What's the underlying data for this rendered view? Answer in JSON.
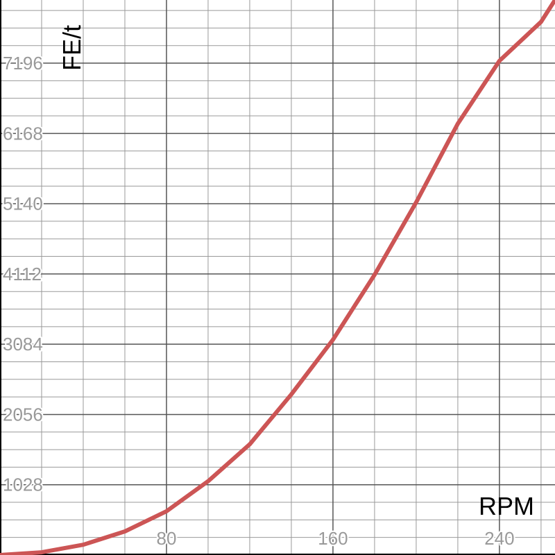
{
  "chart_data": {
    "type": "line",
    "title": "",
    "xlabel": "RPM",
    "ylabel": "FE/t",
    "xlim": [
      0,
      266.7
    ],
    "ylim": [
      0,
      8120
    ],
    "x_ticks": [
      80,
      160,
      240
    ],
    "y_ticks": [
      1028,
      2056,
      3084,
      4112,
      5140,
      6168,
      7196
    ],
    "grid": true,
    "colors": {
      "line": "#cc5555",
      "major_grid": "#555555",
      "minor_grid": "#999999",
      "tick_text": "#999999"
    },
    "series": [
      {
        "x": [
          0,
          20,
          40,
          60,
          80,
          100,
          120,
          140,
          160,
          180,
          200,
          220,
          240,
          260,
          266.7
        ],
        "y": [
          0,
          40,
          150,
          345,
          640,
          1080,
          1620,
          2350,
          3150,
          4100,
          5160,
          6310,
          7230,
          7800,
          8120
        ]
      }
    ]
  }
}
